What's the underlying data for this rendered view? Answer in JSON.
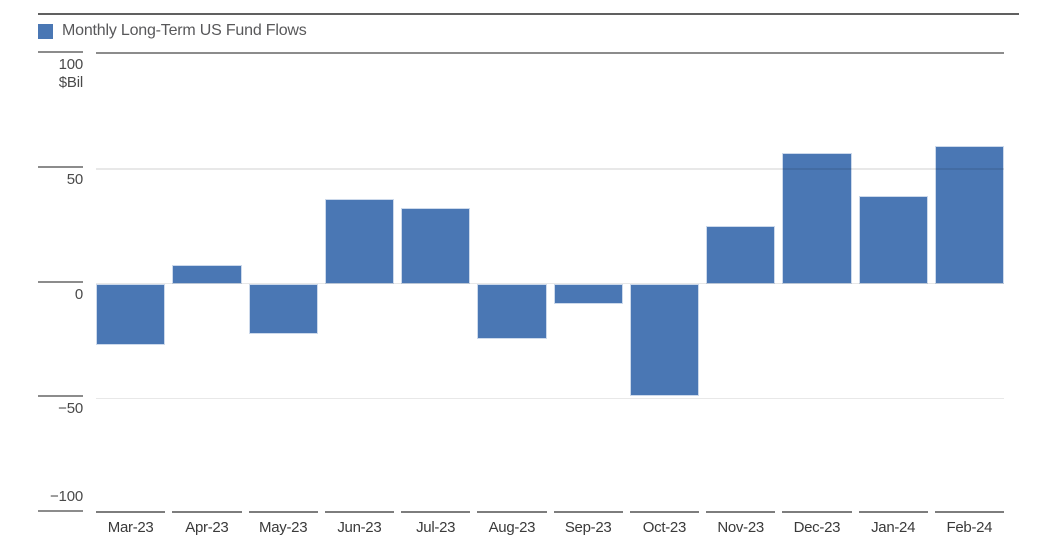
{
  "chart": {
    "legend_label": "Monthly Long-Term US Fund Flows",
    "unit_label": "$Bil",
    "bar_color": "#4a77b4",
    "bar_border_color": "#ccd9eb"
  },
  "chart_data": {
    "type": "bar",
    "title": "Monthly Long-Term US Fund Flows",
    "ylabel": "$Bil",
    "categories": [
      "Mar-23",
      "Apr-23",
      "May-23",
      "Jun-23",
      "Jul-23",
      "Aug-23",
      "Sep-23",
      "Oct-23",
      "Nov-23",
      "Dec-23",
      "Jan-24",
      "Feb-24"
    ],
    "values": [
      -27,
      8,
      -22,
      37,
      33,
      -24,
      -9,
      -49,
      25,
      57,
      38,
      60
    ],
    "series_name": "Monthly Long-Term US Fund Flows",
    "yticks": [
      100,
      50,
      0,
      -50,
      -100
    ],
    "ylim": [
      -100,
      100
    ],
    "grid": true,
    "legend_position": "top-left",
    "bar_color": "#4a77b4"
  }
}
